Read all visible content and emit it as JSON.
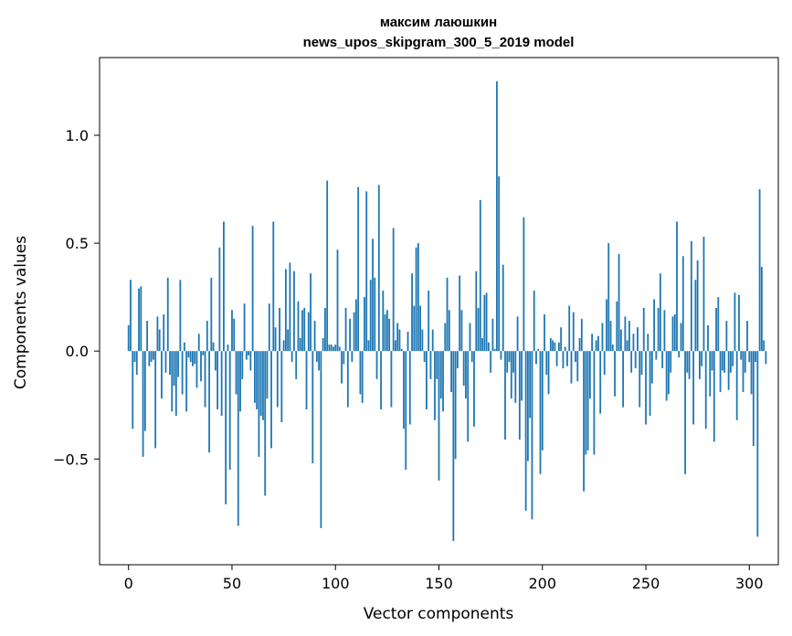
{
  "chart_data": {
    "type": "bar",
    "title_line1": "максим лаюшкин",
    "title_line2": "news_upos_skipgram_300_5_2019 model",
    "xlabel": "Vector components",
    "ylabel": "Components values",
    "xlim": [
      -14,
      314
    ],
    "ylim": [
      -0.99,
      1.36
    ],
    "xticks": [
      0,
      50,
      100,
      150,
      200,
      250,
      300
    ],
    "xtick_labels": [
      "0",
      "50",
      "100",
      "150",
      "200",
      "250",
      "300"
    ],
    "yticks": [
      -0.5,
      0.0,
      0.5,
      1.0
    ],
    "ytick_labels": [
      "−0.5",
      "0.0",
      "0.5",
      "1.0"
    ],
    "bar_color": "#1f77b4",
    "grid": false,
    "values": [
      0.12,
      0.33,
      -0.36,
      -0.05,
      -0.11,
      0.29,
      0.3,
      -0.49,
      -0.37,
      0.14,
      -0.07,
      -0.05,
      -0.04,
      -0.45,
      0.16,
      0.1,
      -0.22,
      0.17,
      -0.1,
      0.34,
      -0.11,
      -0.28,
      -0.16,
      -0.3,
      -0.12,
      0.33,
      -0.2,
      0.04,
      -0.28,
      -0.03,
      -0.05,
      -0.07,
      -0.06,
      -0.17,
      0.08,
      -0.14,
      -0.02,
      -0.26,
      0.14,
      -0.47,
      0.34,
      0.04,
      -0.09,
      -0.27,
      0.48,
      -0.3,
      0.6,
      -0.71,
      0.03,
      -0.55,
      0.19,
      0.15,
      -0.2,
      -0.81,
      -0.28,
      -0.13,
      0.22,
      -0.04,
      -0.02,
      -0.09,
      0.58,
      -0.24,
      -0.27,
      -0.49,
      -0.3,
      -0.32,
      -0.67,
      -0.22,
      0.22,
      -0.45,
      0.6,
      0.11,
      -0.26,
      0.2,
      -0.33,
      0.05,
      0.38,
      0.1,
      0.41,
      -0.05,
      0.37,
      -0.13,
      0.23,
      0.06,
      0.19,
      0.2,
      -0.27,
      0.18,
      0.36,
      -0.52,
      0.14,
      -0.05,
      -0.09,
      -0.82,
      0.06,
      0.2,
      0.79,
      0.03,
      0.03,
      0.02,
      0.03,
      0.47,
      0.02,
      -0.15,
      -0.06,
      0.2,
      -0.26,
      0.15,
      -0.05,
      0.18,
      0.24,
      0.76,
      -0.2,
      -0.24,
      0.25,
      0.74,
      0.05,
      0.33,
      0.52,
      0.34,
      -0.13,
      0.77,
      -0.27,
      0.28,
      0.17,
      0.19,
      0.15,
      -0.26,
      0.57,
      0.05,
      0.13,
      0.1,
      0.01,
      -0.36,
      -0.55,
      0.09,
      -0.34,
      0.36,
      0.21,
      0.48,
      0.5,
      0.21,
      0.1,
      -0.05,
      -0.27,
      0.28,
      -0.13,
      0.1,
      -0.32,
      -0.13,
      -0.6,
      -0.22,
      -0.28,
      0.13,
      0.34,
      0.19,
      -0.19,
      -0.88,
      -0.5,
      -0.08,
      0.35,
      0.19,
      -0.16,
      -0.22,
      -0.42,
      0.13,
      -0.05,
      -0.35,
      0.37,
      0.2,
      0.7,
      0.06,
      0.26,
      0.27,
      0.04,
      -0.1,
      0.15,
      0.01,
      1.25,
      0.81,
      -0.04,
      0.4,
      -0.41,
      -0.1,
      -0.05,
      -0.22,
      -0.1,
      -0.24,
      0.16,
      -0.41,
      -0.23,
      0.62,
      -0.74,
      -0.51,
      -0.31,
      -0.78,
      0.28,
      -0.06,
      0.01,
      -0.57,
      -0.46,
      0.17,
      -0.11,
      -0.2,
      0.06,
      0.05,
      0.04,
      -0.07,
      0.04,
      0.11,
      -0.08,
      0.02,
      -0.07,
      0.21,
      -0.15,
      0.18,
      -0.05,
      -0.14,
      0.06,
      0.15,
      -0.65,
      -0.48,
      -0.46,
      -0.22,
      0.08,
      -0.48,
      0.05,
      0.07,
      -0.29,
      0.13,
      -0.11,
      0.24,
      0.5,
      0.14,
      0.03,
      -0.21,
      0.23,
      0.45,
      0.1,
      -0.26,
      0.16,
      0.05,
      0.14,
      -0.1,
      0.08,
      -0.08,
      0.11,
      -0.26,
      -0.11,
      0.2,
      -0.34,
      0.08,
      -0.3,
      -0.15,
      0.24,
      -0.04,
      0.2,
      0.36,
      -0.08,
      0.19,
      -0.23,
      -0.2,
      -0.1,
      0.16,
      0.17,
      0.6,
      -0.03,
      0.13,
      0.44,
      -0.57,
      -0.1,
      -0.13,
      0.51,
      -0.34,
      0.33,
      0.42,
      -0.13,
      -0.07,
      0.53,
      -0.36,
      0.12,
      -0.21,
      -0.09,
      -0.42,
      0.2,
      0.25,
      -0.19,
      -0.09,
      -0.1,
      0.14,
      -0.18,
      -0.1,
      -0.07,
      0.27,
      -0.32,
      0.26,
      -0.04,
      -0.19,
      -0.1,
      0.14,
      -0.05,
      -0.2,
      -0.44,
      -0.05,
      -0.86,
      0.75,
      0.39,
      0.05,
      -0.06
    ]
  }
}
